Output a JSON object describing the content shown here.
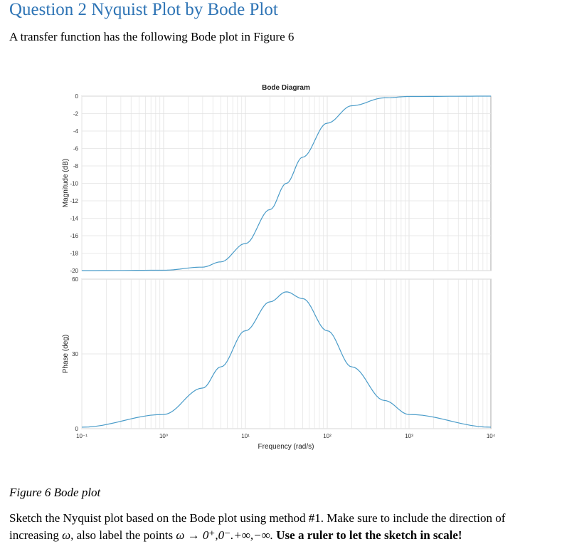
{
  "heading": "Question 2 Nyquist Plot by Bode Plot",
  "intro": "A transfer function has the following Bode plot in Figure 6",
  "figure_caption": "Figure 6 Bode plot",
  "task": {
    "part1": "Sketch the Nyquist plot based on the Bode plot using method #1. Make sure to include the direction of increasing ",
    "omega1": "ω",
    "part2": ", also label the points ",
    "points": "ω → 0⁺,0⁻.+∞,−∞.",
    "emphasis": " Use a ruler to let the sketch in scale!"
  },
  "colors": {
    "heading": "#2e74b5",
    "curve": "#4a9cc9",
    "grid": "#e3e3e3",
    "axis": "#aaaaaa"
  },
  "chart_data": [
    {
      "type": "line",
      "title": "Bode Diagram",
      "xlabel": "",
      "ylabel": "Magnitude (dB)",
      "xscale": "log",
      "xlim": [
        0.1,
        10000
      ],
      "ylim": [
        -20,
        0
      ],
      "yticks": [
        "0",
        "-2",
        "-4",
        "-6",
        "-8",
        "-10",
        "-12",
        "-14",
        "-16",
        "-18",
        "-20"
      ],
      "grid": true,
      "series": [
        {
          "x": [
            0.1,
            1,
            3,
            5,
            10,
            20,
            31.6,
            50,
            100,
            200,
            500,
            1000,
            10000
          ],
          "y": [
            -20,
            -19.96,
            -19.6,
            -19.0,
            -16.9,
            -13.0,
            -10.0,
            -7.0,
            -3.1,
            -1.1,
            -0.2,
            -0.04,
            0
          ]
        }
      ]
    },
    {
      "type": "line",
      "title": "",
      "xlabel": "Frequency (rad/s)",
      "ylabel": "Phase (deg)",
      "xscale": "log",
      "xlim": [
        0.1,
        10000
      ],
      "ylim": [
        0,
        60
      ],
      "xticks": [
        "10⁻¹",
        "10⁰",
        "10¹",
        "10²",
        "10³",
        "10⁴"
      ],
      "yticks": [
        "60",
        "30",
        "0"
      ],
      "grid": true,
      "series": [
        {
          "x": [
            0.1,
            1,
            3,
            5,
            10,
            20,
            31.6,
            50,
            100,
            200,
            500,
            1000,
            10000
          ],
          "y": [
            0.6,
            5.7,
            16.3,
            24.8,
            39.3,
            50.9,
            54.9,
            52.2,
            39.3,
            24.8,
            11.3,
            5.7,
            0.6
          ]
        }
      ]
    }
  ]
}
